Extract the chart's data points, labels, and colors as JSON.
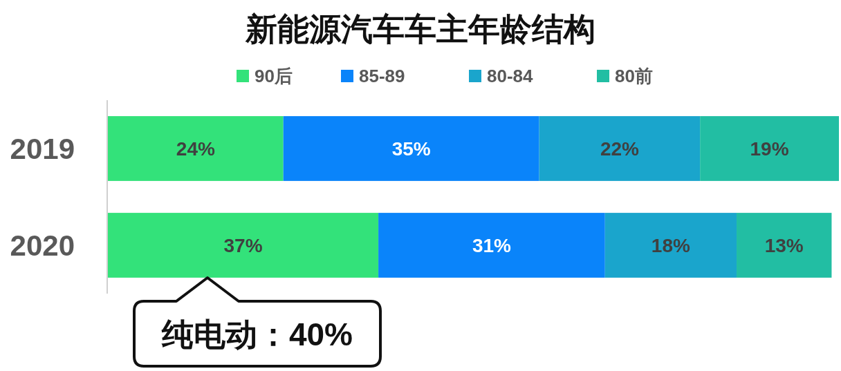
{
  "chart_data": {
    "type": "bar",
    "orientation": "horizontal",
    "stacked": true,
    "title": "新能源汽车车主年龄结构",
    "categories": [
      "2019",
      "2020"
    ],
    "series": [
      {
        "name": "90后",
        "color": "#33e27a",
        "values": [
          24,
          37
        ],
        "value_labels": [
          "24%",
          "37%"
        ]
      },
      {
        "name": "85-89",
        "color": "#0a84fa",
        "values": [
          35,
          31
        ],
        "value_labels": [
          "35%",
          "31%"
        ]
      },
      {
        "name": "80-84",
        "color": "#1aa5cc",
        "values": [
          22,
          18
        ],
        "value_labels": [
          "22%",
          "18%"
        ]
      },
      {
        "name": "80前",
        "color": "#22bea3",
        "values": [
          19,
          13
        ],
        "value_labels": [
          "19%",
          "13%"
        ]
      }
    ],
    "legend": "top",
    "annotations": [
      "纯电动：40%"
    ]
  }
}
